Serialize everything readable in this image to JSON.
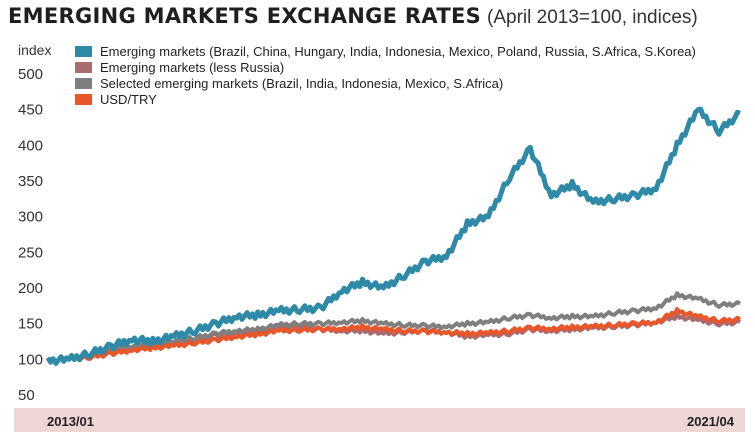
{
  "title": "EMERGING MARKETS EXCHANGE RATES",
  "subtitle": "(April 2013=100, indices)",
  "chart_data": {
    "type": "line",
    "ylabel": "index",
    "ylim": [
      50,
      500
    ],
    "yticks": [
      50,
      100,
      150,
      200,
      250,
      300,
      350,
      400,
      450,
      500
    ],
    "x_start_label": "2013/01",
    "x_end_label": "2021/04",
    "grid": false,
    "legend_position": "top-left",
    "colors": {
      "Emerging markets (Brazil, China, Hungary, India, Indonesia, Mexico, Poland, Russia, S.Africa, S.Korea)": "#2e8aa6",
      "Emerging markets (less Russia)": "#a86b6f",
      "Selected emerging markets (Brazil, India, Indonesia, Mexico, S.Africa)": "#7f7f7f",
      "USD/TRY": "#e8562a",
      "axis_band": "#efd6d6"
    },
    "x": [
      "2013/01",
      "2013/04",
      "2013/07",
      "2013/10",
      "2014/01",
      "2014/04",
      "2014/07",
      "2014/10",
      "2015/01",
      "2015/04",
      "2015/07",
      "2015/10",
      "2016/01",
      "2016/04",
      "2016/07",
      "2016/10",
      "2017/01",
      "2017/04",
      "2017/07",
      "2017/10",
      "2018/01",
      "2018/04",
      "2018/07",
      "2018/10",
      "2019/01",
      "2019/04",
      "2019/07",
      "2019/10",
      "2020/01",
      "2020/04",
      "2020/07",
      "2020/10",
      "2021/01",
      "2021/04"
    ],
    "series": [
      {
        "name": "Emerging markets (Brazil, China, Hungary, India, Indonesia, Mexico, Poland, Russia, S.Africa, S.Korea)",
        "values": [
          98,
          100,
          108,
          118,
          128,
          125,
          132,
          140,
          150,
          160,
          162,
          168,
          170,
          172,
          196,
          208,
          200,
          218,
          237,
          245,
          290,
          300,
          355,
          395,
          330,
          345,
          320,
          325,
          330,
          340,
          400,
          450,
          420,
          445
        ]
      },
      {
        "name": "Emerging markets (less Russia)",
        "values": [
          98,
          100,
          104,
          110,
          116,
          118,
          122,
          128,
          134,
          138,
          140,
          145,
          146,
          142,
          140,
          140,
          136,
          138,
          140,
          138,
          132,
          134,
          136,
          142,
          140,
          142,
          144,
          146,
          148,
          152,
          160,
          155,
          150,
          152
        ]
      },
      {
        "name": "Selected emerging markets (Brazil, India, Indonesia, Mexico, S.Africa)",
        "values": [
          98,
          100,
          105,
          112,
          118,
          120,
          124,
          130,
          136,
          140,
          142,
          148,
          150,
          150,
          152,
          154,
          150,
          148,
          147,
          146,
          150,
          152,
          158,
          162,
          158,
          160,
          160,
          165,
          168,
          172,
          190,
          185,
          176,
          178
        ]
      },
      {
        "name": "USD/TRY",
        "values": [
          98,
          100,
          103,
          108,
          113,
          116,
          119,
          123,
          127,
          132,
          135,
          140,
          141,
          142,
          143,
          145,
          142,
          140,
          139,
          138,
          136,
          137,
          140,
          144,
          143,
          145,
          146,
          148,
          150,
          152,
          168,
          160,
          154,
          156
        ]
      }
    ]
  }
}
